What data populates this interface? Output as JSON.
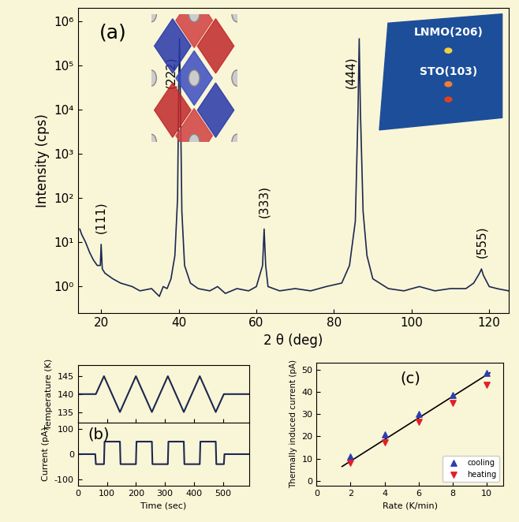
{
  "chart_data": [
    {
      "type": "line",
      "annotations": [
        "(a)"
      ],
      "xlabel": "2 θ (deg)",
      "ylabel": "Intensity (cps)",
      "log": "y",
      "color": "#1c2850",
      "x": [
        14.5,
        15,
        16,
        17,
        18,
        19,
        19.8,
        20.0,
        20.3,
        21,
        23,
        25,
        28,
        30,
        33,
        35,
        36,
        37,
        38,
        39,
        39.7,
        40.0,
        40.2,
        40.4,
        40.8,
        41.5,
        43,
        45,
        48,
        50,
        52,
        55,
        58,
        60,
        61.6,
        62,
        62.4,
        63,
        66,
        70,
        74,
        78,
        82,
        84,
        85.5,
        86.2,
        86.5,
        86.8,
        87.5,
        88.5,
        90,
        94,
        98,
        102,
        106,
        110,
        114,
        116,
        117.5,
        118,
        118.5,
        120,
        122,
        125
      ],
      "values": [
        20,
        15,
        10,
        6,
        4,
        3,
        3,
        9,
        2.5,
        2,
        1.5,
        1.2,
        1,
        0.8,
        0.9,
        0.6,
        1.0,
        0.9,
        1.5,
        5,
        100,
        40000,
        400000,
        30000,
        50,
        3,
        1.2,
        0.9,
        0.8,
        1,
        0.7,
        0.9,
        0.8,
        1,
        3,
        20,
        3,
        1,
        0.8,
        0.9,
        0.8,
        1,
        1.2,
        3,
        30,
        10000,
        400000,
        10000,
        50,
        5,
        1.5,
        0.9,
        0.8,
        1,
        0.8,
        0.9,
        0.9,
        1.2,
        2,
        2.5,
        1.8,
        1,
        0.9,
        0.8
      ],
      "xlim": [
        14,
        125
      ],
      "ylim": [
        0.25,
        2000000
      ],
      "xticks": [
        20,
        40,
        60,
        80,
        100,
        120
      ],
      "yticks": [
        {
          "value": 1,
          "label": "10⁰"
        },
        {
          "value": 10,
          "label": "10¹"
        },
        {
          "value": 100,
          "label": "10²"
        },
        {
          "value": 1000,
          "label": "10³"
        },
        {
          "value": 10000,
          "label": "10⁴"
        },
        {
          "value": 100000,
          "label": "10⁵"
        },
        {
          "value": 1000000,
          "label": "10⁶"
        }
      ],
      "peaks": [
        {
          "label": "(111)",
          "x": 20.0
        },
        {
          "label": "(222)",
          "x": 40.2
        },
        {
          "label": "(333)",
          "x": 62
        },
        {
          "label": "(444)",
          "x": 86.5
        },
        {
          "label": "(555)",
          "x": 118
        }
      ],
      "inset_labels": [
        "LNMO(206)",
        "STO(103)"
      ]
    },
    {
      "type": "line",
      "ylabel": "Temperature (K)",
      "color": "#1c2850",
      "x": [
        0,
        62,
        90,
        145,
        200,
        255,
        310,
        365,
        420,
        475,
        503,
        590
      ],
      "values": [
        140,
        140,
        145,
        135,
        145,
        135,
        145,
        135,
        145,
        135,
        140,
        140
      ],
      "xlim": [
        0,
        590
      ],
      "xticks": [
        0,
        100,
        200,
        300,
        400,
        500
      ],
      "ylim": [
        132,
        148
      ],
      "yticks": [
        135,
        140,
        145
      ],
      "tick_labels": "y"
    },
    {
      "type": "line",
      "ylabel": "Current (pA)",
      "xlabel": "Time (sec)",
      "annotations": [
        "(b)"
      ],
      "color": "#1c2850",
      "x": [
        0,
        60,
        62,
        90,
        92,
        145,
        147,
        200,
        202,
        255,
        257,
        310,
        312,
        365,
        367,
        420,
        422,
        475,
        477,
        503,
        505,
        590
      ],
      "values": [
        0,
        0,
        -40,
        -40,
        50,
        50,
        -40,
        -40,
        50,
        50,
        -40,
        -40,
        50,
        50,
        -40,
        -40,
        50,
        50,
        -40,
        -40,
        0,
        0
      ],
      "xlim": [
        0,
        590
      ],
      "xticks": [
        0,
        100,
        200,
        300,
        400,
        500
      ],
      "ylim": [
        -125,
        125
      ],
      "yticks": [
        -100,
        0,
        100
      ]
    },
    {
      "type": "scatter",
      "xlabel": "Rate (K/min)",
      "ylabel": "Thermally induced current (pA)",
      "annotations": [
        "(c)"
      ],
      "x": [
        2,
        4,
        6,
        8,
        10
      ],
      "series": [
        {
          "name": "cooling",
          "color": "#2a3fb0",
          "marker": "triangle_up",
          "values": [
            11,
            21,
            30,
            38.5,
            48.5
          ]
        },
        {
          "name": "heating",
          "color": "#e0202a",
          "marker": "triangle_down",
          "values": [
            8,
            17.5,
            26.5,
            35,
            43
          ]
        }
      ],
      "fit": {
        "x": [
          1.5,
          10.2
        ],
        "values": [
          6.5,
          48.5
        ],
        "color": "#000000"
      },
      "xlim": [
        0,
        11
      ],
      "xticks": [
        0,
        2,
        4,
        6,
        8,
        10
      ],
      "ylim": [
        -2,
        53
      ],
      "yticks": [
        0,
        10,
        20,
        30,
        40,
        50
      ],
      "legend": "lower right"
    }
  ]
}
